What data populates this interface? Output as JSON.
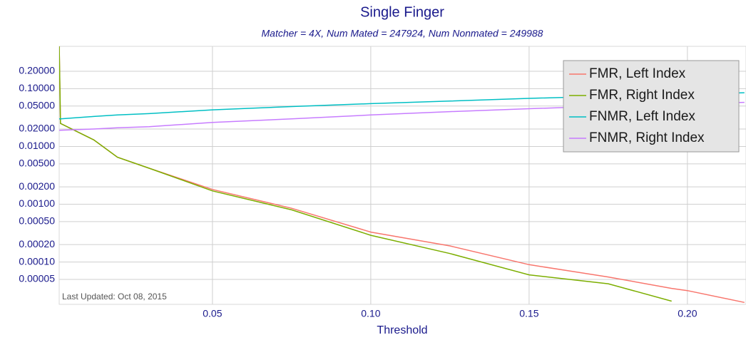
{
  "chart_data": {
    "type": "line",
    "title": "Single Finger",
    "subtitle": "Matcher = 4X,   Num Mated = 247924,   Num Nonmated = 249988",
    "x_label": "Threshold",
    "annotation": "Last Updated: Oct 08, 2015",
    "log_y": true,
    "grid": true,
    "legend": "top-right",
    "x": [
      0.0016,
      0.002,
      0.0125,
      0.02,
      0.03,
      0.05,
      0.075,
      0.1,
      0.125,
      0.15,
      0.175,
      0.195,
      0.2,
      0.218
    ],
    "series": [
      {
        "name": "FMR, Left Index",
        "color": "#f8766d",
        "values": [
          0.6,
          0.025,
          0.013,
          0.0065,
          0.0042,
          0.0018,
          0.00085,
          0.00033,
          0.00019,
          9e-05,
          5.5e-05,
          3.5e-05,
          3.2e-05,
          2e-05
        ]
      },
      {
        "name": "FMR, Right Index",
        "color": "#7cae00",
        "values": [
          0.6,
          0.025,
          0.013,
          0.0065,
          0.0042,
          0.0017,
          0.0008,
          0.00029,
          0.00014,
          6e-05,
          4.2e-05,
          2.1e-05,
          null,
          null
        ]
      },
      {
        "name": "FNMR, Left Index",
        "color": "#00bfc4",
        "values": [
          0.03,
          0.03,
          0.033,
          0.035,
          0.037,
          0.043,
          0.049,
          0.055,
          0.061,
          0.068,
          0.074,
          0.079,
          0.08,
          0.085
        ]
      },
      {
        "name": "FNMR, Right Index",
        "color": "#c77cff",
        "values": [
          0.019,
          0.019,
          0.02,
          0.021,
          0.022,
          0.026,
          0.03,
          0.035,
          0.04,
          0.045,
          0.05,
          0.054,
          0.055,
          0.058
        ]
      }
    ],
    "xlim": [
      0.0016,
      0.2185
    ],
    "xticks": [
      0.05,
      {
        "value": 0.1,
        "label": "0.10"
      },
      0.15,
      {
        "value": 0.2,
        "label": "0.20"
      }
    ],
    "ylim": [
      1.85e-05,
      0.54
    ],
    "yticks": [
      {
        "value": 0.2,
        "label": "0.20000"
      },
      {
        "value": 0.1,
        "label": "0.10000"
      },
      {
        "value": 0.05,
        "label": "0.05000"
      },
      {
        "value": 0.02,
        "label": "0.02000"
      },
      {
        "value": 0.01,
        "label": "0.01000"
      },
      {
        "value": 0.005,
        "label": "0.00500"
      },
      {
        "value": 0.002,
        "label": "0.00200"
      },
      {
        "value": 0.001,
        "label": "0.00100"
      },
      {
        "value": 0.0005,
        "label": "0.00050"
      },
      {
        "value": 0.0002,
        "label": "0.00020"
      },
      {
        "value": 0.0001,
        "label": "0.00010"
      },
      5e-05
    ]
  }
}
